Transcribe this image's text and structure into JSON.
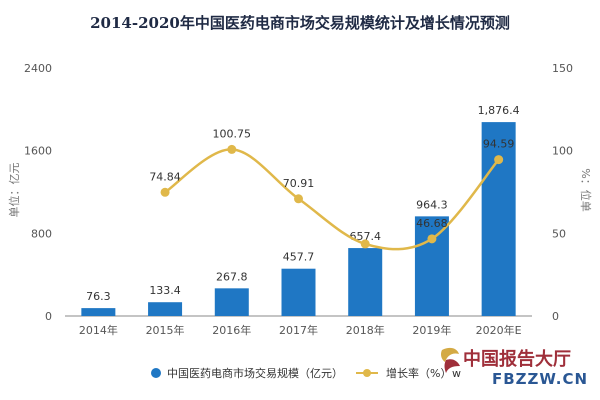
{
  "chart_data": {
    "type": "bar",
    "title": "2014-2020年中国医药电商市场交易规模统计及增长情况预测",
    "categories": [
      "2014年",
      "2015年",
      "2016年",
      "2017年",
      "2018年",
      "2019年",
      "2020年E"
    ],
    "series": [
      {
        "name": "中国医药电商市场交易规模（亿元）",
        "type": "bar",
        "axis": "left",
        "color": "#1f77c4",
        "values": [
          76.3,
          133.4,
          267.8,
          457.7,
          657.4,
          964.3,
          1876.4
        ],
        "labels": [
          "76.3",
          "133.4",
          "267.8",
          "457.7",
          "657.4",
          "964.3",
          "1,876.4"
        ]
      },
      {
        "name": "增长率（%）",
        "type": "line",
        "axis": "right",
        "color": "#e0b84a",
        "values": [
          null,
          74.84,
          100.75,
          70.91,
          43.6,
          46.68,
          94.59
        ],
        "labels": [
          "",
          "74.84",
          "100.75",
          "70.91",
          "",
          "46.68",
          "94.59"
        ]
      }
    ],
    "ylabel": "单位：亿元",
    "y2label": "%：位单",
    "ylim": [
      0,
      2400
    ],
    "y2lim": [
      0,
      150
    ],
    "yticks": [
      "0",
      "800",
      "1600",
      "2400"
    ],
    "y2ticks": [
      "0",
      "50",
      "100",
      "150"
    ],
    "grid": false,
    "legend_position": "bottom"
  },
  "watermark": {
    "cn": "中国报告大厅",
    "en": "FBZZW.CN",
    "partial": "w"
  }
}
